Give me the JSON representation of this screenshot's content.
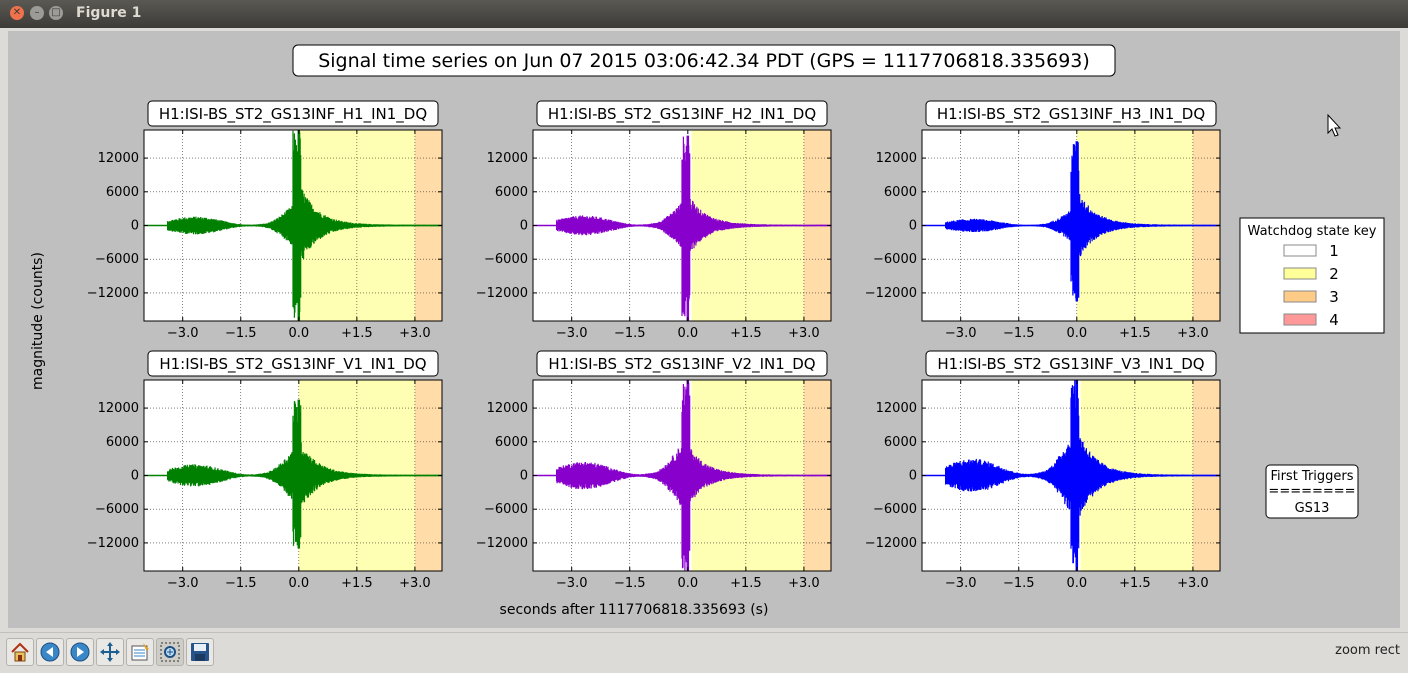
{
  "window": {
    "title": "Figure 1"
  },
  "figure_title": "Signal time series on Jun 07 2015 03:06:42.34 PDT (GPS = 1117706818.335693)",
  "chart_data": {
    "type": "line",
    "xlabel": "seconds after 1117706818.335693 (s)",
    "ylabel": "magnitude (counts)",
    "xlim": [
      -4.0,
      3.7
    ],
    "ylim": [
      -17000,
      17000
    ],
    "xticks": [
      -3.0,
      -1.5,
      0.0,
      1.5,
      3.0
    ],
    "xtick_labels": [
      "−3.0",
      "−1.5",
      "0.0",
      "+1.5",
      "+3.0"
    ],
    "yticks": [
      12000,
      6000,
      0,
      -6000,
      -12000
    ],
    "ytick_labels": [
      "12000",
      "6000",
      "0",
      "−6000",
      "−12000"
    ],
    "grid": true,
    "state_bands": [
      {
        "state": 2,
        "from": 0.0,
        "to": 3.0,
        "color": "#ffffb3"
      },
      {
        "state": 3,
        "from": 3.0,
        "to": 3.7,
        "color": "#ffdca8"
      }
    ],
    "panels": [
      {
        "title": "H1:ISI-BS_ST2_GS13INF_H1_IN1_DQ",
        "color": "#008000",
        "peak_pos": 17000,
        "peak_neg": -17000,
        "pre_amp": 1600,
        "post_amp": 7000
      },
      {
        "title": "H1:ISI-BS_ST2_GS13INF_H2_IN1_DQ",
        "color": "#8800cc",
        "peak_pos": 16000,
        "peak_neg": -17000,
        "pre_amp": 1800,
        "post_amp": 5000,
        "band2_from": 0.1
      },
      {
        "title": "H1:ISI-BS_ST2_GS13INF_H3_IN1_DQ",
        "color": "#0000ff",
        "peak_pos": 15000,
        "peak_neg": -13500,
        "pre_amp": 1200,
        "post_amp": 6000
      },
      {
        "title": "H1:ISI-BS_ST2_GS13INF_V1_IN1_DQ",
        "color": "#008000",
        "peak_pos": 13500,
        "peak_neg": -13000,
        "pre_amp": 2000,
        "post_amp": 6000
      },
      {
        "title": "H1:ISI-BS_ST2_GS13INF_V2_IN1_DQ",
        "color": "#8800cc",
        "peak_pos": 17000,
        "peak_neg": -17000,
        "pre_amp": 2500,
        "post_amp": 5000,
        "band2_from": 0.1
      },
      {
        "title": "H1:ISI-BS_ST2_GS13INF_V3_IN1_DQ",
        "color": "#0000ff",
        "peak_pos": 17000,
        "peak_neg": -17000,
        "pre_amp": 3000,
        "post_amp": 8000,
        "band2_from": 0.1
      }
    ]
  },
  "legend": {
    "title": "Watchdog state key",
    "items": [
      {
        "label": "1",
        "color": "#ffffff"
      },
      {
        "label": "2",
        "color": "#ffff99"
      },
      {
        "label": "3",
        "color": "#ffcc88"
      },
      {
        "label": "4",
        "color": "#ff9999"
      }
    ]
  },
  "first_triggers": {
    "title": "First Triggers",
    "separator": "========",
    "value": "GS13"
  },
  "toolbar": {
    "buttons": [
      "home-icon",
      "back-icon",
      "forward-icon",
      "pan-icon",
      "subplots-icon",
      "zoom-to-rect-icon",
      "save-icon"
    ],
    "status": "zoom rect"
  }
}
